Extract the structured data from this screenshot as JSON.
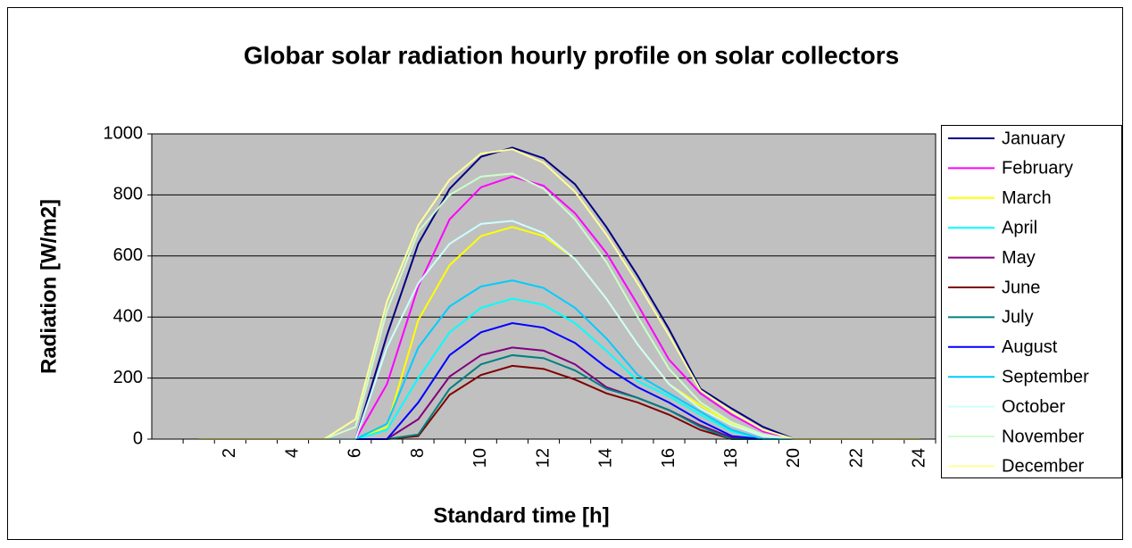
{
  "chart_data": {
    "type": "line",
    "title": "Globar solar radiation hourly profile on solar collectors",
    "x_label": "Standard time [h]",
    "y_label": "Radiation [W/m2]",
    "categories": [
      null,
      null,
      "2",
      null,
      "4",
      null,
      "6",
      null,
      "8",
      null,
      "10",
      null,
      "12",
      null,
      "14",
      null,
      "16",
      null,
      "18",
      null,
      "20",
      null,
      "22",
      null,
      "24"
    ],
    "ylim": [
      0,
      1000
    ],
    "yticks": [
      0,
      200,
      400,
      600,
      800,
      1000
    ],
    "grid": true,
    "legend": "right",
    "series": [
      {
        "name": "January",
        "color": "#000080",
        "values": [
          null,
          0,
          0,
          0,
          0,
          0,
          0,
          340,
          640,
          820,
          925,
          955,
          920,
          835,
          695,
          535,
          360,
          165,
          100,
          40,
          0,
          0,
          0,
          0,
          0
        ]
      },
      {
        "name": "February",
        "color": "#FF00FF",
        "values": [
          null,
          0,
          0,
          0,
          0,
          0,
          0,
          180,
          500,
          720,
          825,
          860,
          830,
          740,
          610,
          440,
          260,
          150,
          80,
          25,
          0,
          0,
          0,
          0,
          0
        ]
      },
      {
        "name": "March",
        "color": "#FFFF00",
        "values": [
          null,
          0,
          0,
          0,
          0,
          0,
          0,
          40,
          390,
          570,
          665,
          695,
          665,
          590,
          460,
          310,
          180,
          110,
          50,
          10,
          0,
          0,
          0,
          0,
          0
        ]
      },
      {
        "name": "April",
        "color": "#00FFFF",
        "values": [
          null,
          0,
          0,
          0,
          0,
          0,
          0,
          30,
          200,
          350,
          430,
          460,
          440,
          380,
          290,
          190,
          140,
          80,
          25,
          0,
          0,
          0,
          0,
          0,
          0
        ]
      },
      {
        "name": "May",
        "color": "#800080",
        "values": [
          null,
          0,
          0,
          0,
          0,
          0,
          0,
          0,
          65,
          205,
          275,
          300,
          290,
          245,
          170,
          135,
          95,
          45,
          5,
          0,
          0,
          0,
          0,
          0,
          0
        ]
      },
      {
        "name": "June",
        "color": "#800000",
        "values": [
          null,
          0,
          0,
          0,
          0,
          0,
          0,
          0,
          10,
          145,
          210,
          240,
          230,
          195,
          150,
          120,
          80,
          30,
          0,
          0,
          0,
          0,
          0,
          0,
          0
        ]
      },
      {
        "name": "July",
        "color": "#008080",
        "values": [
          null,
          0,
          0,
          0,
          0,
          0,
          0,
          0,
          15,
          165,
          245,
          275,
          265,
          225,
          165,
          135,
          95,
          40,
          0,
          0,
          0,
          0,
          0,
          0,
          0
        ]
      },
      {
        "name": "August",
        "color": "#0000FF",
        "values": [
          null,
          0,
          0,
          0,
          0,
          0,
          0,
          0,
          120,
          275,
          350,
          380,
          365,
          315,
          235,
          170,
          120,
          60,
          10,
          0,
          0,
          0,
          0,
          0,
          0
        ]
      },
      {
        "name": "September",
        "color": "#00CCFF",
        "values": [
          null,
          0,
          0,
          0,
          0,
          0,
          0,
          50,
          300,
          435,
          500,
          520,
          495,
          430,
          330,
          210,
          150,
          90,
          30,
          0,
          0,
          0,
          0,
          0,
          0
        ]
      },
      {
        "name": "October",
        "color": "#CCFFFF",
        "values": [
          null,
          0,
          0,
          0,
          0,
          0,
          0,
          300,
          510,
          640,
          705,
          715,
          675,
          590,
          460,
          310,
          180,
          100,
          45,
          10,
          0,
          0,
          0,
          0,
          0
        ]
      },
      {
        "name": "November",
        "color": "#CCFFCC",
        "values": [
          null,
          0,
          0,
          0,
          0,
          0,
          40,
          420,
          680,
          800,
          860,
          870,
          820,
          720,
          580,
          400,
          230,
          120,
          55,
          15,
          0,
          0,
          0,
          0,
          0
        ]
      },
      {
        "name": "December",
        "color": "#FFFF99",
        "values": [
          null,
          0,
          0,
          0,
          0,
          0,
          65,
          450,
          700,
          850,
          935,
          950,
          905,
          810,
          670,
          510,
          340,
          160,
          90,
          30,
          0,
          0,
          0,
          0,
          0
        ]
      }
    ]
  }
}
